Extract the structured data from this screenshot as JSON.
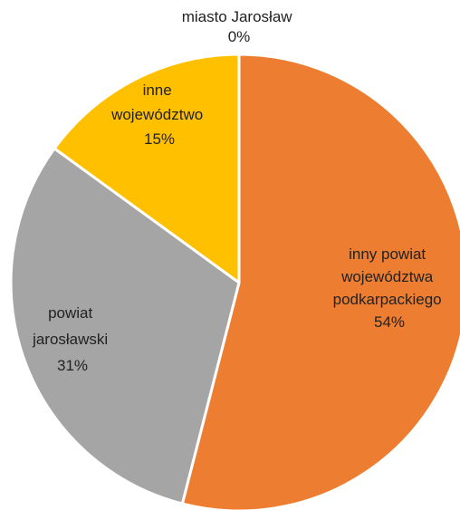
{
  "chart_data": {
    "type": "pie",
    "slices": [
      {
        "label_lines": [
          "miasto Jarosław"
        ],
        "pct_text": "0%",
        "value": 0,
        "color": "#4472C4"
      },
      {
        "label_lines": [
          "inny powiat",
          "województwa",
          "podkarpackiego"
        ],
        "pct_text": "54%",
        "value": 54,
        "color": "#ED7D31"
      },
      {
        "label_lines": [
          "powiat",
          "jarosławski"
        ],
        "pct_text": "31%",
        "value": 31,
        "color": "#A5A5A5"
      },
      {
        "label_lines": [
          "inne",
          "województwo"
        ],
        "pct_text": "15%",
        "value": 15,
        "color": "#FFC000"
      }
    ],
    "start_angle": "12 o'clock",
    "direction": "clockwise",
    "legend": "none"
  }
}
